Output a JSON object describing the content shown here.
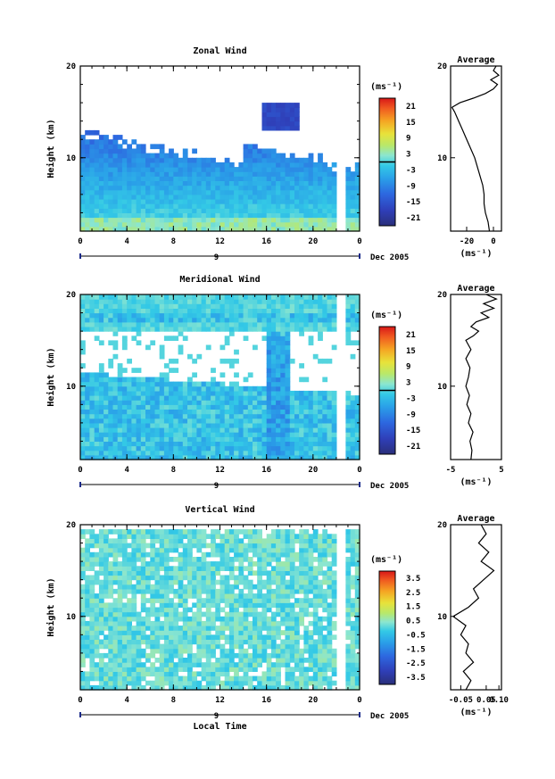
{
  "chart_data": [
    {
      "type": "heatmap",
      "title": "Zonal Wind",
      "ylabel": "Height (km)",
      "x_ticks": [
        "0",
        "4",
        "8",
        "12",
        "16",
        "20",
        "0"
      ],
      "y_ticks": [
        "20",
        "10"
      ],
      "xlim": [
        0,
        24
      ],
      "ylim": [
        2,
        20
      ],
      "date_marker": "9",
      "date_label": "Dec 2005",
      "colorbar": {
        "unit": "(ms⁻¹)",
        "ticks": [
          "21",
          "15",
          "9",
          "3",
          "-3",
          "-9",
          "-15",
          "-21"
        ],
        "range": [
          -24,
          24
        ]
      },
      "average": {
        "title": "Average",
        "xlabel": "(ms⁻¹)",
        "x_ticks": [
          "-20",
          "0"
        ],
        "y_ticks": [
          "20",
          "10"
        ],
        "xlim": [
          -32,
          6
        ],
        "profile": [
          [
            2.0,
            -3
          ],
          [
            3.0,
            -4
          ],
          [
            4.0,
            -6
          ],
          [
            5.0,
            -7
          ],
          [
            6.0,
            -7
          ],
          [
            7.0,
            -8
          ],
          [
            8.0,
            -10
          ],
          [
            9.0,
            -12
          ],
          [
            10.0,
            -14
          ],
          [
            11.0,
            -17
          ],
          [
            12.0,
            -20
          ],
          [
            13.0,
            -23
          ],
          [
            14.0,
            -26
          ],
          [
            15.0,
            -29
          ],
          [
            15.5,
            -31
          ],
          [
            16.0,
            -25
          ],
          [
            16.5,
            -15
          ],
          [
            17.0,
            -6
          ],
          [
            17.5,
            0
          ],
          [
            18.0,
            3
          ],
          [
            18.5,
            -2
          ],
          [
            19.0,
            4
          ],
          [
            19.5,
            0
          ],
          [
            20.0,
            2
          ]
        ]
      }
    },
    {
      "type": "heatmap",
      "title": "Meridional Wind",
      "ylabel": "Height (km)",
      "x_ticks": [
        "0",
        "4",
        "8",
        "12",
        "16",
        "20",
        "0"
      ],
      "y_ticks": [
        "20",
        "10"
      ],
      "xlim": [
        0,
        24
      ],
      "ylim": [
        2,
        20
      ],
      "date_marker": "9",
      "date_label": "Dec 2005",
      "colorbar": {
        "unit": "(ms⁻¹)",
        "ticks": [
          "21",
          "15",
          "9",
          "3",
          "-3",
          "-9",
          "-15",
          "-21"
        ],
        "range": [
          -24,
          24
        ]
      },
      "average": {
        "title": "Average",
        "xlabel": "(ms⁻¹)",
        "x_ticks": [
          "-5",
          "5"
        ],
        "y_ticks": [
          "20",
          "10"
        ],
        "xlim": [
          -5,
          5
        ],
        "profile": [
          [
            2.0,
            -1.0
          ],
          [
            3.0,
            -0.8
          ],
          [
            4.0,
            -1.2
          ],
          [
            5.0,
            -0.6
          ],
          [
            6.0,
            -1.5
          ],
          [
            7.0,
            -1.0
          ],
          [
            8.0,
            -1.8
          ],
          [
            9.0,
            -1.3
          ],
          [
            10.0,
            -2.0
          ],
          [
            11.0,
            -1.5
          ],
          [
            12.0,
            -1.2
          ],
          [
            13.0,
            -2.0
          ],
          [
            14.0,
            -1.0
          ],
          [
            15.0,
            -2.0
          ],
          [
            15.5,
            -0.5
          ],
          [
            16.0,
            0.5
          ],
          [
            16.5,
            -1.0
          ],
          [
            17.0,
            0.0
          ],
          [
            17.5,
            2.5
          ],
          [
            18.0,
            1.0
          ],
          [
            18.5,
            3.5
          ],
          [
            19.0,
            1.5
          ],
          [
            19.5,
            4.0
          ],
          [
            20.0,
            2.0
          ]
        ]
      }
    },
    {
      "type": "heatmap",
      "title": "Vertical Wind",
      "ylabel": "Height (km)",
      "xlabel": "Local Time",
      "x_ticks": [
        "0",
        "4",
        "8",
        "12",
        "16",
        "20",
        "0"
      ],
      "y_ticks": [
        "20",
        "10"
      ],
      "xlim": [
        0,
        24
      ],
      "ylim": [
        2,
        20
      ],
      "date_marker": "9",
      "date_label": "Dec 2005",
      "colorbar": {
        "unit": "(ms⁻¹)",
        "ticks": [
          "3.5",
          "2.5",
          "1.5",
          "0.5",
          "-0.5",
          "-1.5",
          "-2.5",
          "-3.5"
        ],
        "range": [
          -4,
          4
        ]
      },
      "average": {
        "title": "Average",
        "xlabel": "(ms⁻¹)",
        "x_ticks": [
          "-0.05",
          "0.05",
          "0.10"
        ],
        "y_ticks": [
          "20",
          "10"
        ],
        "xlim": [
          -0.09,
          0.11
        ],
        "profile": [
          [
            2.0,
            -0.03
          ],
          [
            3.0,
            -0.01
          ],
          [
            4.0,
            -0.04
          ],
          [
            5.0,
            0.0
          ],
          [
            6.0,
            -0.03
          ],
          [
            7.0,
            -0.02
          ],
          [
            8.0,
            -0.05
          ],
          [
            9.0,
            -0.03
          ],
          [
            10.0,
            -0.08
          ],
          [
            11.0,
            -0.02
          ],
          [
            12.0,
            0.02
          ],
          [
            13.0,
            0.0
          ],
          [
            14.0,
            0.04
          ],
          [
            15.0,
            0.08
          ],
          [
            16.0,
            0.03
          ],
          [
            17.0,
            0.06
          ],
          [
            18.0,
            0.02
          ],
          [
            19.0,
            0.05
          ],
          [
            20.0,
            0.03
          ]
        ]
      }
    }
  ]
}
